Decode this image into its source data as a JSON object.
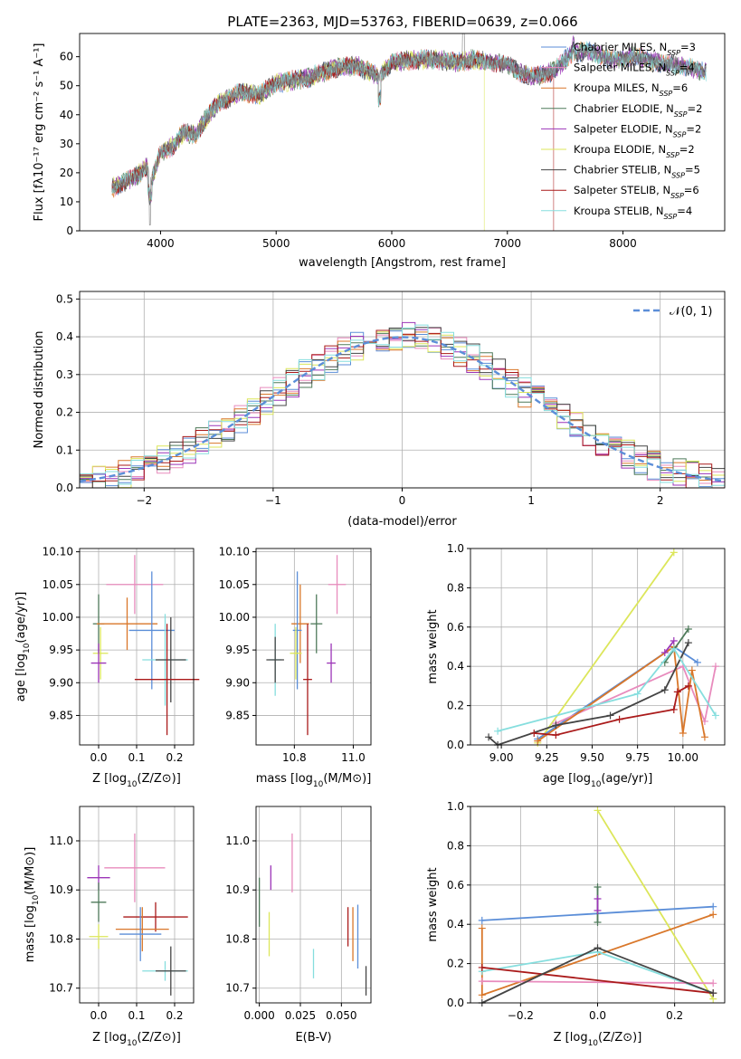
{
  "colors": {
    "Chabrier MILES": "#5b8ed8",
    "Salpeter MILES": "#e88bbd",
    "Kroupa MILES": "#d9772a",
    "Chabrier ELODIE": "#4e7a5a",
    "Salpeter ELODIE": "#9c35b8",
    "Kroupa ELODIE": "#dce65a",
    "Chabrier STELIB": "#444444",
    "Salpeter STELIB": "#aa1a1a",
    "Kroupa STELIB": "#86dede",
    "normal": "#5b8ed8"
  },
  "chart_data": [
    {
      "type": "line",
      "title": "PLATE=2363, MJD=53763, FIBERID=0639, z=0.066",
      "xlabel": "wavelength [Angstrom, rest frame]",
      "ylabel": "Flux [fλ10⁻¹⁷ erg cm⁻² s⁻¹ A⁻¹]",
      "xlim": [
        3300,
        8880
      ],
      "ylim": [
        0,
        68
      ],
      "xticks": [
        "4000",
        "5000",
        "6000",
        "7000",
        "8000"
      ],
      "yticks": [
        "0",
        "10",
        "20",
        "30",
        "40",
        "50",
        "60"
      ],
      "legend_position": "upper right",
      "legend": [
        {
          "series": "Chabrier MILES",
          "pre": "Chabrier MILES, N",
          "sub": "SSP",
          "post": "=3"
        },
        {
          "series": "Salpeter MILES",
          "pre": "Salpeter MILES, N",
          "sub": "SSP",
          "post": "=4"
        },
        {
          "series": "Kroupa MILES",
          "pre": "Kroupa MILES, N",
          "sub": "SSP",
          "post": "=6"
        },
        {
          "series": "Chabrier ELODIE",
          "pre": "Chabrier ELODIE, N",
          "sub": "SSP",
          "post": "=2"
        },
        {
          "series": "Salpeter ELODIE",
          "pre": "Salpeter ELODIE, N",
          "sub": "SSP",
          "post": "=2"
        },
        {
          "series": "Kroupa ELODIE",
          "pre": "Kroupa ELODIE, N",
          "sub": "SSP",
          "post": "=2"
        },
        {
          "series": "Chabrier STELIB",
          "pre": "Chabrier STELIB, N",
          "sub": "SSP",
          "post": "=5"
        },
        {
          "series": "Salpeter STELIB",
          "pre": "Salpeter STELIB, N",
          "sub": "SSP",
          "post": "=6"
        },
        {
          "series": "Kroupa STELIB",
          "pre": "Kroupa STELIB, N",
          "sub": "SSP",
          "post": "=4"
        }
      ],
      "observed_flux": {
        "x": [
          3600,
          3700,
          3800,
          3880,
          3920,
          4000,
          4100,
          4200,
          4300,
          4400,
          4500,
          4700,
          4861,
          5000,
          5175,
          5300,
          5500,
          5700,
          5890,
          6000,
          6200,
          6400,
          6563,
          6700,
          6900,
          7000,
          7200,
          7400,
          7550,
          7700,
          7900,
          8100,
          8300,
          8600,
          8700
        ],
        "y": [
          15,
          17,
          19,
          22,
          17,
          27,
          29,
          34,
          33,
          39,
          44,
          48,
          47,
          51,
          52,
          53,
          56,
          57,
          53,
          58,
          59,
          59,
          58,
          59,
          58,
          57,
          53,
          55,
          61,
          62,
          59,
          60,
          58,
          56,
          55
        ]
      },
      "model_cutoffs": [
        {
          "series": "Kroupa ELODIE",
          "x": 6800
        },
        {
          "series": "Salpeter STELIB",
          "x": 7400
        }
      ]
    },
    {
      "type": "histogram",
      "xlabel": "(data-model)/error",
      "ylabel": "Normed distribution",
      "xlim": [
        -2.5,
        2.5
      ],
      "ylim": [
        0,
        0.52
      ],
      "xticks": [
        "−2",
        "−1",
        "0",
        "1",
        "2"
      ],
      "yticks": [
        "0.0",
        "0.1",
        "0.2",
        "0.3",
        "0.4",
        "0.5"
      ],
      "bin_width": 0.1,
      "bin_start": -2.5,
      "reference_curve": {
        "name": "normal",
        "label": "𝒩(0, 1)",
        "mean": 0,
        "sigma": 1
      },
      "legend_position": "upper right",
      "series_order": [
        "Chabrier MILES",
        "Salpeter MILES",
        "Kroupa MILES",
        "Chabrier ELODIE",
        "Salpeter ELODIE",
        "Kroupa ELODIE",
        "Chabrier STELIB",
        "Salpeter STELIB",
        "Kroupa STELIB"
      ]
    },
    {
      "type": "errorbar",
      "xlabel_pre": "Z [log",
      "xlabel_sub": "10",
      "xlabel_post": "(Z/Z⊙)]",
      "ylabel_pre": "age  [log",
      "ylabel_sub": "10",
      "ylabel_post": "(age/yr)]",
      "xlim": [
        -0.05,
        0.25
      ],
      "ylim": [
        9.805,
        10.105
      ],
      "xticks": [
        {
          "v": 0.0,
          "t": "0.0"
        },
        {
          "v": 0.1,
          "t": "0.1"
        },
        {
          "v": 0.2,
          "t": "0.2"
        }
      ],
      "yticks": [
        {
          "v": 9.85,
          "t": "9.85"
        },
        {
          "v": 9.9,
          "t": "9.90"
        },
        {
          "v": 9.95,
          "t": "9.95"
        },
        {
          "v": 10.0,
          "t": "10.00"
        },
        {
          "v": 10.05,
          "t": "10.05"
        },
        {
          "v": 10.1,
          "t": "10.10"
        }
      ],
      "points": [
        {
          "series": "Salpeter MILES",
          "x": 0.095,
          "y": 10.05,
          "xerr": 0.075,
          "yerr": 0.045
        },
        {
          "series": "Chabrier ELODIE",
          "x": 0.0,
          "y": 9.99,
          "xerr": 0.015,
          "yerr": 0.045
        },
        {
          "series": "Kroupa MILES",
          "x": 0.075,
          "y": 9.99,
          "xerr": 0.08,
          "yerr": 0.04
        },
        {
          "series": "Chabrier MILES",
          "x": 0.14,
          "y": 9.98,
          "xerr": 0.06,
          "yerr": 0.09
        },
        {
          "series": "Kroupa ELODIE",
          "x": 0.005,
          "y": 9.945,
          "xerr": 0.02,
          "yerr": 0.04
        },
        {
          "series": "Salpeter ELODIE",
          "x": 0.0,
          "y": 9.93,
          "xerr": 0.02,
          "yerr": 0.03
        },
        {
          "series": "Kroupa STELIB",
          "x": 0.175,
          "y": 9.935,
          "xerr": 0.06,
          "yerr": 0.07
        },
        {
          "series": "Chabrier STELIB",
          "x": 0.19,
          "y": 9.935,
          "xerr": 0.04,
          "yerr": 0.065
        },
        {
          "series": "Salpeter STELIB",
          "x": 0.18,
          "y": 9.905,
          "xerr": 0.085,
          "yerr": 0.085
        }
      ]
    },
    {
      "type": "errorbar",
      "xlabel_pre": "mass [log",
      "xlabel_sub": "10",
      "xlabel_post": "(M/M⊙)]",
      "ylabel_pre": "",
      "ylabel_sub": "",
      "ylabel_post": "",
      "xlim": [
        10.67,
        11.06
      ],
      "ylim": [
        9.805,
        10.105
      ],
      "xticks": [
        {
          "v": 10.8,
          "t": "10.8"
        },
        {
          "v": 11.0,
          "t": "11.0"
        }
      ],
      "yticks": [
        {
          "v": 9.85,
          "t": "9.85"
        },
        {
          "v": 9.9,
          "t": "9.90"
        },
        {
          "v": 9.95,
          "t": "9.95"
        },
        {
          "v": 10.0,
          "t": "10.00"
        },
        {
          "v": 10.05,
          "t": "10.05"
        },
        {
          "v": 10.1,
          "t": "10.10"
        }
      ],
      "points": [
        {
          "series": "Salpeter MILES",
          "x": 10.945,
          "y": 10.05,
          "xerr": 0.03,
          "yerr": 0.045
        },
        {
          "series": "Chabrier ELODIE",
          "x": 10.875,
          "y": 9.99,
          "xerr": 0.02,
          "yerr": 0.045
        },
        {
          "series": "Kroupa MILES",
          "x": 10.82,
          "y": 9.99,
          "xerr": 0.03,
          "yerr": 0.06
        },
        {
          "series": "Chabrier MILES",
          "x": 10.81,
          "y": 9.98,
          "xerr": 0.015,
          "yerr": 0.09
        },
        {
          "series": "Kroupa ELODIE",
          "x": 10.805,
          "y": 9.945,
          "xerr": 0.02,
          "yerr": 0.04
        },
        {
          "series": "Salpeter ELODIE",
          "x": 10.925,
          "y": 9.93,
          "xerr": 0.015,
          "yerr": 0.03
        },
        {
          "series": "Kroupa STELIB",
          "x": 10.735,
          "y": 9.935,
          "xerr": 0.02,
          "yerr": 0.055
        },
        {
          "series": "Chabrier STELIB",
          "x": 10.735,
          "y": 9.935,
          "xerr": 0.03,
          "yerr": 0.035
        },
        {
          "series": "Salpeter STELIB",
          "x": 10.845,
          "y": 9.905,
          "xerr": 0.015,
          "yerr": 0.085
        }
      ]
    },
    {
      "type": "line",
      "xlabel_pre": "age  [log",
      "xlabel_sub": "10",
      "xlabel_post": "(age/yr)]",
      "ylabel_pre": "mass weight",
      "ylabel_sub": "",
      "ylabel_post": "",
      "xlim": [
        8.83,
        10.23
      ],
      "ylim": [
        0,
        1.0
      ],
      "xticks": [
        {
          "v": 9.0,
          "t": "9.00"
        },
        {
          "v": 9.25,
          "t": "9.25"
        },
        {
          "v": 9.5,
          "t": "9.50"
        },
        {
          "v": 9.75,
          "t": "9.75"
        },
        {
          "v": 10.0,
          "t": "10.00"
        }
      ],
      "yticks": [
        {
          "v": 0,
          "t": "0.0"
        },
        {
          "v": 0.2,
          "t": "0.2"
        },
        {
          "v": 0.4,
          "t": "0.4"
        },
        {
          "v": 0.6,
          "t": "0.6"
        },
        {
          "v": 0.8,
          "t": "0.8"
        },
        {
          "v": 1.0,
          "t": "1.0"
        }
      ],
      "series": [
        {
          "series": "Kroupa ELODIE",
          "x": [
            9.2,
            9.95
          ],
          "y": [
            0.01,
            0.98
          ]
        },
        {
          "series": "Chabrier MILES",
          "x": [
            9.2,
            9.95,
            10.08
          ],
          "y": [
            0.03,
            0.5,
            0.42
          ]
        },
        {
          "series": "Salpeter MILES",
          "x": [
            9.3,
            10.0,
            10.12,
            10.18
          ],
          "y": [
            0.11,
            0.4,
            0.12,
            0.4
          ]
        },
        {
          "series": "Kroupa MILES",
          "x": [
            9.2,
            9.95,
            10.0,
            10.05,
            10.12
          ],
          "y": [
            0.02,
            0.5,
            0.06,
            0.38,
            0.04
          ]
        },
        {
          "series": "Chabrier ELODIE",
          "x": [
            9.9,
            10.03
          ],
          "y": [
            0.42,
            0.59
          ]
        },
        {
          "series": "Salpeter ELODIE",
          "x": [
            9.9,
            9.95
          ],
          "y": [
            0.47,
            0.53
          ]
        },
        {
          "series": "Chabrier STELIB",
          "x": [
            8.93,
            8.98,
            9.3,
            9.6,
            9.9,
            10.03
          ],
          "y": [
            0.04,
            0.0,
            0.1,
            0.15,
            0.28,
            0.52
          ]
        },
        {
          "series": "Salpeter STELIB",
          "x": [
            9.18,
            9.3,
            9.65,
            9.95,
            9.97,
            10.03
          ],
          "y": [
            0.06,
            0.05,
            0.13,
            0.18,
            0.27,
            0.3
          ]
        },
        {
          "series": "Kroupa STELIB",
          "x": [
            8.98,
            9.75,
            9.95,
            10.18
          ],
          "y": [
            0.07,
            0.26,
            0.49,
            0.15
          ]
        }
      ]
    },
    {
      "type": "errorbar",
      "xlabel_pre": "Z [log",
      "xlabel_sub": "10",
      "xlabel_post": "(Z/Z⊙)]",
      "ylabel_pre": "mass [log",
      "ylabel_sub": "10",
      "ylabel_post": "(M/M⊙)]",
      "xlim": [
        -0.05,
        0.25
      ],
      "ylim": [
        10.67,
        11.07
      ],
      "xticks": [
        {
          "v": 0.0,
          "t": "0.0"
        },
        {
          "v": 0.1,
          "t": "0.1"
        },
        {
          "v": 0.2,
          "t": "0.2"
        }
      ],
      "yticks": [
        {
          "v": 10.7,
          "t": "10.7"
        },
        {
          "v": 10.8,
          "t": "10.8"
        },
        {
          "v": 10.9,
          "t": "10.9"
        },
        {
          "v": 11.0,
          "t": "11.0"
        }
      ],
      "points": [
        {
          "series": "Salpeter MILES",
          "x": 0.095,
          "y": 10.945,
          "xerr": 0.08,
          "yerr": 0.07
        },
        {
          "series": "Salpeter ELODIE",
          "x": 0.0,
          "y": 10.925,
          "xerr": 0.03,
          "yerr": 0.025
        },
        {
          "series": "Chabrier ELODIE",
          "x": 0.0,
          "y": 10.875,
          "xerr": 0.02,
          "yerr": 0.04
        },
        {
          "series": "Salpeter STELIB",
          "x": 0.15,
          "y": 10.845,
          "xerr": 0.085,
          "yerr": 0.03
        },
        {
          "series": "Kroupa MILES",
          "x": 0.115,
          "y": 10.82,
          "xerr": 0.07,
          "yerr": 0.045
        },
        {
          "series": "Chabrier MILES",
          "x": 0.11,
          "y": 10.81,
          "xerr": 0.055,
          "yerr": 0.055
        },
        {
          "series": "Kroupa ELODIE",
          "x": 0.0,
          "y": 10.805,
          "xerr": 0.025,
          "yerr": 0.025
        },
        {
          "series": "Kroupa STELIB",
          "x": 0.175,
          "y": 10.735,
          "xerr": 0.06,
          "yerr": 0.02
        },
        {
          "series": "Chabrier STELIB",
          "x": 0.19,
          "y": 10.735,
          "xerr": 0.04,
          "yerr": 0.05
        }
      ]
    },
    {
      "type": "errorbar",
      "xlabel_pre": "E(B-V)",
      "xlabel_sub": "",
      "xlabel_post": "",
      "ylabel_pre": "",
      "ylabel_sub": "",
      "ylabel_post": "",
      "xlim": [
        -0.002,
        0.068
      ],
      "ylim": [
        10.67,
        11.07
      ],
      "xticks": [
        {
          "v": 0.0,
          "t": "0.000"
        },
        {
          "v": 0.025,
          "t": "0.025"
        },
        {
          "v": 0.05,
          "t": "0.050"
        }
      ],
      "yticks": [
        {
          "v": 10.7,
          "t": "10.7"
        },
        {
          "v": 10.8,
          "t": "10.8"
        },
        {
          "v": 10.9,
          "t": "10.9"
        },
        {
          "v": 11.0,
          "t": "11.0"
        }
      ],
      "points": [
        {
          "series": "Chabrier ELODIE",
          "x": 0.0,
          "y": 10.875,
          "xerr": 0,
          "yerr": 0.05
        },
        {
          "series": "Salpeter ELODIE",
          "x": 0.007,
          "y": 10.925,
          "xerr": 0,
          "yerr": 0.025
        },
        {
          "series": "Kroupa ELODIE",
          "x": 0.006,
          "y": 10.81,
          "xerr": 0,
          "yerr": 0.045
        },
        {
          "series": "Salpeter MILES",
          "x": 0.02,
          "y": 10.955,
          "xerr": 0,
          "yerr": 0.06
        },
        {
          "series": "Kroupa STELIB",
          "x": 0.033,
          "y": 10.75,
          "xerr": 0,
          "yerr": 0.03
        },
        {
          "series": "Salpeter STELIB",
          "x": 0.054,
          "y": 10.825,
          "xerr": 0,
          "yerr": 0.04
        },
        {
          "series": "Kroupa MILES",
          "x": 0.057,
          "y": 10.81,
          "xerr": 0,
          "yerr": 0.055
        },
        {
          "series": "Chabrier MILES",
          "x": 0.06,
          "y": 10.805,
          "xerr": 0,
          "yerr": 0.065
        },
        {
          "series": "Chabrier STELIB",
          "x": 0.065,
          "y": 10.715,
          "xerr": 0,
          "yerr": 0.03
        }
      ]
    },
    {
      "type": "line",
      "xlabel_pre": "Z [log",
      "xlabel_sub": "10",
      "xlabel_post": "(Z/Z⊙)]",
      "ylabel_pre": "mass weight",
      "ylabel_sub": "",
      "ylabel_post": "",
      "xlim": [
        -0.33,
        0.33
      ],
      "ylim": [
        0,
        1.0
      ],
      "xticks": [
        {
          "v": -0.2,
          "t": "−0.2"
        },
        {
          "v": 0.0,
          "t": "0.0"
        },
        {
          "v": 0.2,
          "t": "0.2"
        }
      ],
      "yticks": [
        {
          "v": 0,
          "t": "0.0"
        },
        {
          "v": 0.2,
          "t": "0.2"
        },
        {
          "v": 0.4,
          "t": "0.4"
        },
        {
          "v": 0.6,
          "t": "0.6"
        },
        {
          "v": 0.8,
          "t": "0.8"
        },
        {
          "v": 1.0,
          "t": "1.0"
        }
      ],
      "series": [
        {
          "series": "Kroupa ELODIE",
          "x": [
            0.0,
            0.3
          ],
          "y": [
            0.98,
            0.02
          ]
        },
        {
          "series": "Chabrier MILES",
          "x": [
            -0.3,
            0.3
          ],
          "y": [
            0.42,
            0.49
          ]
        },
        {
          "series": "Kroupa MILES",
          "x": [
            -0.3,
            -0.3,
            0.3
          ],
          "y": [
            0.38,
            0.04,
            0.45
          ]
        },
        {
          "series": "Chabrier ELODIE",
          "x": [
            0.0,
            0.0
          ],
          "y": [
            0.41,
            0.59
          ]
        },
        {
          "series": "Salpeter ELODIE",
          "x": [
            0.0,
            0.0
          ],
          "y": [
            0.47,
            0.53
          ]
        },
        {
          "series": "Kroupa STELIB",
          "x": [
            -0.3,
            0.0,
            0.3
          ],
          "y": [
            0.16,
            0.26,
            0.05
          ]
        },
        {
          "series": "Salpeter MILES",
          "x": [
            -0.3,
            0.3
          ],
          "y": [
            0.11,
            0.1
          ]
        },
        {
          "series": "Salpeter STELIB",
          "x": [
            -0.3,
            0.3
          ],
          "y": [
            0.18,
            0.05
          ]
        },
        {
          "series": "Chabrier STELIB",
          "x": [
            -0.3,
            0.0,
            0.3
          ],
          "y": [
            0.0,
            0.28,
            0.05
          ]
        }
      ]
    }
  ]
}
